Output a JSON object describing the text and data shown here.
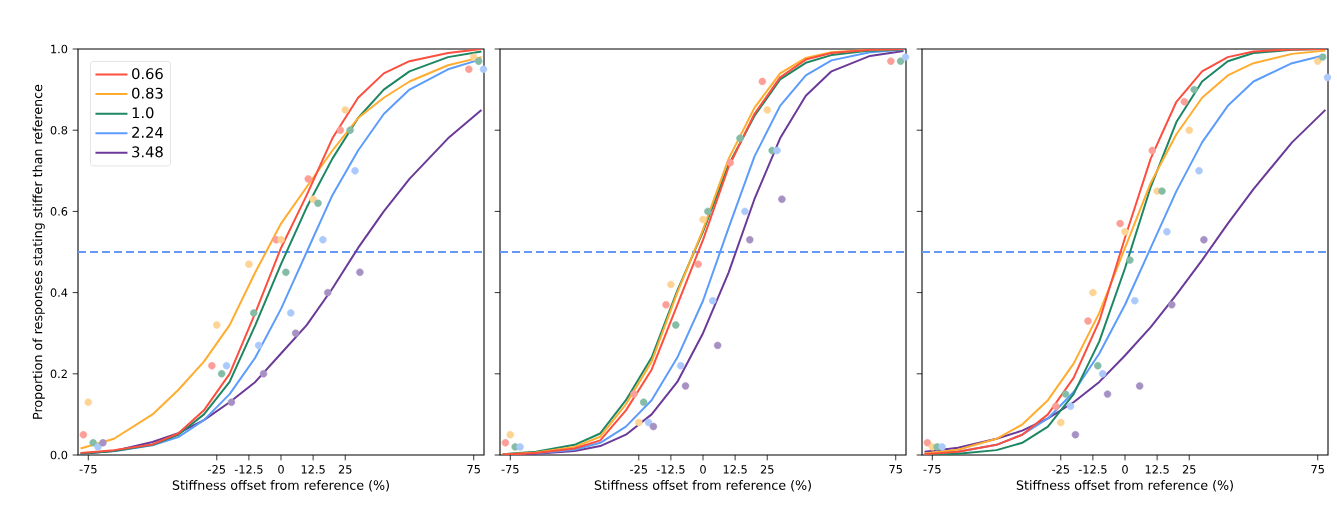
{
  "chart_data": [
    {
      "type": "line",
      "xlabel": "Stiffness offset from reference (%)",
      "ylabel": "Proportion of responses stating stiffer than reference",
      "legend": "top left",
      "xlim": [
        -79,
        79
      ],
      "ylim": [
        0,
        1
      ],
      "xticks": [
        -75,
        -25,
        -12.5,
        0,
        12.5,
        25,
        75
      ],
      "yticks": [
        {
          "value": 0,
          "label": "0.0"
        },
        0.2,
        0.4,
        0.6,
        0.8,
        {
          "value": 1,
          "label": "1.0"
        }
      ],
      "x": [
        -78,
        -65,
        -50,
        -40,
        -30,
        -20,
        -10,
        0,
        10,
        20,
        30,
        40,
        50,
        65,
        78
      ],
      "ref_lines": [
        {
          "axis": "y",
          "value": 0.5,
          "color": "#6699f5",
          "line_style": "dashed"
        }
      ],
      "series": [
        {
          "name": "0.66",
          "marker": "none",
          "color": "#fc4f3f",
          "values": [
            0.005,
            0.012,
            0.026,
            0.053,
            0.11,
            0.2,
            0.35,
            0.51,
            0.64,
            0.78,
            0.88,
            0.94,
            0.97,
            0.99,
            1.0
          ]
        },
        {
          "name": "0.83",
          "marker": "none",
          "color": "#ffac2f",
          "values": [
            0.016,
            0.04,
            0.1,
            0.16,
            0.23,
            0.32,
            0.45,
            0.57,
            0.66,
            0.75,
            0.83,
            0.88,
            0.92,
            0.96,
            0.98
          ]
        },
        {
          "name": "1.0",
          "marker": "none",
          "color": "#1d8763",
          "values": [
            0.003,
            0.01,
            0.025,
            0.05,
            0.1,
            0.18,
            0.32,
            0.47,
            0.61,
            0.73,
            0.83,
            0.9,
            0.945,
            0.98,
            0.994
          ]
        },
        {
          "name": "2.24",
          "marker": "none",
          "color": "#5c9cfb",
          "values": [
            null,
            0.009,
            0.024,
            0.044,
            0.086,
            0.15,
            0.24,
            0.36,
            0.5,
            0.64,
            0.75,
            0.84,
            0.9,
            0.95,
            0.975
          ]
        },
        {
          "name": "3.48",
          "marker": "none",
          "color": "#6b3a98",
          "values": [
            0.003,
            0.01,
            0.032,
            0.054,
            0.086,
            0.13,
            0.18,
            0.25,
            0.32,
            0.41,
            0.51,
            0.6,
            0.68,
            0.78,
            0.85
          ]
        },
        {
          "type": "scatter",
          "marker": "circle",
          "color": "#fb9f98",
          "x": [
            -76.9,
            -26.9,
            -1.9,
            10.6,
            23.1,
            73.1
          ],
          "values": [
            0.05,
            0.22,
            0.53,
            0.68,
            0.8,
            0.95
          ]
        },
        {
          "type": "scatter",
          "marker": "circle",
          "color": "#fdd494",
          "x": [
            -75,
            -25,
            -12.5,
            0,
            12.5,
            25,
            75
          ],
          "values": [
            0.13,
            0.32,
            0.47,
            0.53,
            0.63,
            0.85,
            0.98
          ]
        },
        {
          "type": "scatter",
          "marker": "circle",
          "color": "#84bca6",
          "x": [
            -73.1,
            -23.1,
            -10.6,
            1.9,
            14.4,
            26.9,
            76.9
          ],
          "values": [
            0.03,
            0.2,
            0.35,
            0.45,
            0.62,
            0.8,
            0.97
          ]
        },
        {
          "type": "scatter",
          "marker": "circle",
          "color": "#abcafb",
          "x": [
            -71.2,
            -21.2,
            -8.7,
            3.8,
            16.3,
            28.8,
            78.8
          ],
          "values": [
            0.02,
            0.22,
            0.27,
            0.35,
            0.53,
            0.7,
            0.95
          ]
        },
        {
          "type": "scatter",
          "marker": "circle",
          "color": "#a791c4",
          "x": [
            -69.3,
            -19.3,
            -6.8,
            5.7,
            18.2,
            30.7
          ],
          "values": [
            0.03,
            0.13,
            0.2,
            0.3,
            0.4,
            0.45
          ]
        }
      ]
    },
    {
      "type": "line",
      "xlabel": "Stiffness offset from reference (%)",
      "tick_labels": "x",
      "xlim": [
        -79,
        79
      ],
      "ylim": [
        0,
        1
      ],
      "xticks": [
        -75,
        -25,
        -12.5,
        0,
        12.5,
        25,
        75
      ],
      "yticks": [
        {
          "value": 0,
          "label": null
        },
        {
          "value": 0.2,
          "label": null
        },
        {
          "value": 0.4,
          "label": null
        },
        {
          "value": 0.6,
          "label": null
        },
        {
          "value": 0.8,
          "label": null
        },
        {
          "value": 1,
          "label": null
        }
      ],
      "x": [
        -78,
        -65,
        -50,
        -40,
        -30,
        -20,
        -10,
        0,
        10,
        20,
        30,
        40,
        50,
        65,
        78
      ],
      "ref_lines": [
        {
          "axis": "y",
          "value": 0.5,
          "color": "#6699f5",
          "line_style": "dashed"
        }
      ],
      "series": [
        {
          "marker": "none",
          "color": "#fc4f3f",
          "values": [
            0.001,
            0.005,
            0.016,
            0.036,
            0.11,
            0.21,
            0.37,
            0.53,
            0.71,
            0.84,
            0.93,
            0.974,
            0.99,
            0.998,
            1.0
          ]
        },
        {
          "marker": "none",
          "color": "#ffac2f",
          "values": [
            0.001,
            0.006,
            0.02,
            0.045,
            0.125,
            0.23,
            0.4,
            0.555,
            0.73,
            0.855,
            0.94,
            0.978,
            0.992,
            0.998,
            1.0
          ]
        },
        {
          "marker": "none",
          "color": "#1d8763",
          "values": [
            0.002,
            0.008,
            0.025,
            0.053,
            0.135,
            0.24,
            0.405,
            0.55,
            0.715,
            0.835,
            0.925,
            0.966,
            0.985,
            0.996,
            0.999
          ]
        },
        {
          "marker": "none",
          "color": "#5c9cfb",
          "values": [
            null,
            0.004,
            0.013,
            0.03,
            0.07,
            0.135,
            0.24,
            0.38,
            0.56,
            0.735,
            0.86,
            0.935,
            0.972,
            0.992,
            0.998
          ]
        },
        {
          "marker": "none",
          "color": "#6b3a98",
          "values": [
            0.0,
            0.003,
            0.01,
            0.022,
            0.05,
            0.1,
            0.18,
            0.3,
            0.45,
            0.63,
            0.78,
            0.885,
            0.945,
            0.983,
            0.995
          ]
        },
        {
          "type": "scatter",
          "marker": "circle",
          "color": "#fb9f98",
          "x": [
            -76.9,
            -26.9,
            -14.4,
            -1.9,
            10.6,
            23.1,
            73.1
          ],
          "values": [
            0.03,
            0.15,
            0.37,
            0.47,
            0.72,
            0.92,
            0.97
          ]
        },
        {
          "type": "scatter",
          "marker": "circle",
          "color": "#fdd494",
          "x": [
            -75,
            -25,
            -12.5,
            0,
            25
          ],
          "values": [
            0.05,
            0.08,
            0.42,
            0.58,
            0.85
          ]
        },
        {
          "type": "scatter",
          "marker": "circle",
          "color": "#84bca6",
          "x": [
            -73.1,
            -23.1,
            -10.6,
            1.9,
            14.4,
            26.9,
            76.9
          ],
          "values": [
            0.02,
            0.13,
            0.32,
            0.6,
            0.78,
            0.75,
            0.97
          ]
        },
        {
          "type": "scatter",
          "marker": "circle",
          "color": "#abcafb",
          "x": [
            -71.2,
            -21.2,
            -8.7,
            3.8,
            16.3,
            28.8,
            78.8
          ],
          "values": [
            0.02,
            0.08,
            0.22,
            0.38,
            0.6,
            0.75,
            0.98
          ]
        },
        {
          "type": "scatter",
          "marker": "circle",
          "color": "#a791c4",
          "x": [
            -19.3,
            -6.8,
            5.7,
            18.2,
            30.7
          ],
          "values": [
            0.07,
            0.17,
            0.27,
            0.53,
            0.63
          ]
        }
      ]
    },
    {
      "type": "line",
      "xlabel": "Stiffness offset from reference (%)",
      "tick_labels": "x",
      "xlim": [
        -79,
        79
      ],
      "ylim": [
        0,
        1
      ],
      "xticks": [
        -75,
        -25,
        -12.5,
        0,
        12.5,
        25,
        75
      ],
      "yticks": [
        {
          "value": 0,
          "label": null
        },
        {
          "value": 0.2,
          "label": null
        },
        {
          "value": 0.4,
          "label": null
        },
        {
          "value": 0.6,
          "label": null
        },
        {
          "value": 0.8,
          "label": null
        },
        {
          "value": 1,
          "label": null
        }
      ],
      "x": [
        -78,
        -65,
        -50,
        -40,
        -30,
        -20,
        -10,
        0,
        10,
        20,
        30,
        40,
        50,
        65,
        78
      ],
      "ref_lines": [
        {
          "axis": "y",
          "value": 0.5,
          "color": "#6699f5",
          "line_style": "dashed"
        }
      ],
      "series": [
        {
          "marker": "none",
          "color": "#fc4f3f",
          "values": [
            0.002,
            0.008,
            0.025,
            0.05,
            0.1,
            0.19,
            0.33,
            0.535,
            0.73,
            0.87,
            0.945,
            0.98,
            0.994,
            0.999,
            1.0
          ]
        },
        {
          "marker": "none",
          "color": "#ffac2f",
          "values": [
            0.004,
            0.013,
            0.04,
            0.075,
            0.135,
            0.225,
            0.35,
            0.51,
            0.67,
            0.79,
            0.88,
            0.935,
            0.965,
            0.988,
            0.996
          ]
        },
        {
          "marker": "none",
          "color": "#1d8763",
          "values": [
            0.0,
            0.003,
            0.012,
            0.03,
            0.07,
            0.15,
            0.28,
            0.46,
            0.66,
            0.82,
            0.92,
            0.97,
            0.99,
            0.998,
            1.0
          ]
        },
        {
          "marker": "none",
          "color": "#5c9cfb",
          "values": [
            0.002,
            0.008,
            0.025,
            0.05,
            0.09,
            0.155,
            0.25,
            0.37,
            0.51,
            0.65,
            0.77,
            0.86,
            0.92,
            0.965,
            0.985
          ]
        },
        {
          "marker": "none",
          "color": "#6b3a98",
          "values": [
            0.008,
            0.018,
            0.04,
            0.06,
            0.09,
            0.13,
            0.18,
            0.245,
            0.315,
            0.395,
            0.48,
            0.57,
            0.655,
            0.77,
            0.85
          ]
        },
        {
          "type": "scatter",
          "marker": "circle",
          "color": "#fb9f98",
          "x": [
            -76.9,
            -26.9,
            -14.4,
            -1.9,
            10.6,
            23.1
          ],
          "values": [
            0.03,
            0.12,
            0.33,
            0.57,
            0.75,
            0.87
          ]
        },
        {
          "type": "scatter",
          "marker": "circle",
          "color": "#fdd494",
          "x": [
            -75,
            -25,
            -12.5,
            0,
            12.5,
            25,
            75
          ],
          "values": [
            0.02,
            0.08,
            0.4,
            0.55,
            0.65,
            0.8,
            0.97
          ]
        },
        {
          "type": "scatter",
          "marker": "circle",
          "color": "#84bca6",
          "x": [
            -73.1,
            -23.1,
            -10.6,
            1.9,
            14.4,
            26.9,
            76.9
          ],
          "values": [
            0.02,
            0.15,
            0.22,
            0.48,
            0.65,
            0.9,
            0.98
          ]
        },
        {
          "type": "scatter",
          "marker": "circle",
          "color": "#abcafb",
          "x": [
            -71.2,
            -21.2,
            -8.7,
            3.8,
            16.3,
            28.8,
            78.8
          ],
          "values": [
            0.02,
            0.12,
            0.2,
            0.38,
            0.55,
            0.7,
            0.93
          ]
        },
        {
          "type": "scatter",
          "marker": "circle",
          "color": "#a791c4",
          "x": [
            -19.3,
            -6.8,
            5.7,
            18.2,
            30.7
          ],
          "values": [
            0.05,
            0.15,
            0.17,
            0.37,
            0.53
          ]
        }
      ]
    }
  ]
}
